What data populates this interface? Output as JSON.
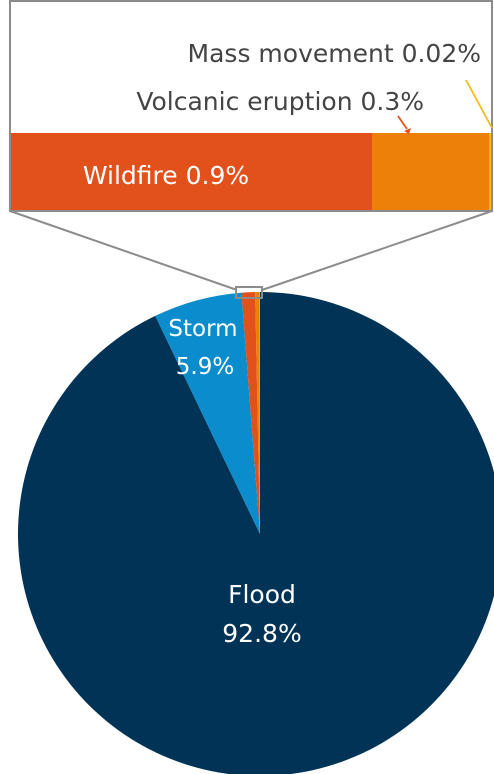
{
  "chart_data": {
    "type": "pie",
    "slices": [
      {
        "label": "Flood",
        "value": 92.8,
        "display": "92.8%",
        "color": "#003356"
      },
      {
        "label": "Storm",
        "value": 5.9,
        "display": "5.9%",
        "color": "#0b8ccc"
      },
      {
        "label": "Wildfire",
        "value": 0.9,
        "display": "0.9%",
        "color": "#e2511b"
      },
      {
        "label": "Volcanic eruption",
        "value": 0.3,
        "display": "0.3%",
        "color": "#ec8008"
      },
      {
        "label": "Mass movement",
        "value": 0.02,
        "display": "0.02%",
        "color": "#f3bc1c"
      }
    ],
    "zoom_callout": {
      "labels": {
        "mass_movement": "Mass movement 0.02%",
        "volcanic": "Volcanic eruption 0.3%",
        "wildfire": "Wildfire 0.9%"
      }
    },
    "colors": {
      "callout_border": "#8c8c8c",
      "label_text_dark": "#444444",
      "label_text_light": "#ffffff"
    }
  }
}
